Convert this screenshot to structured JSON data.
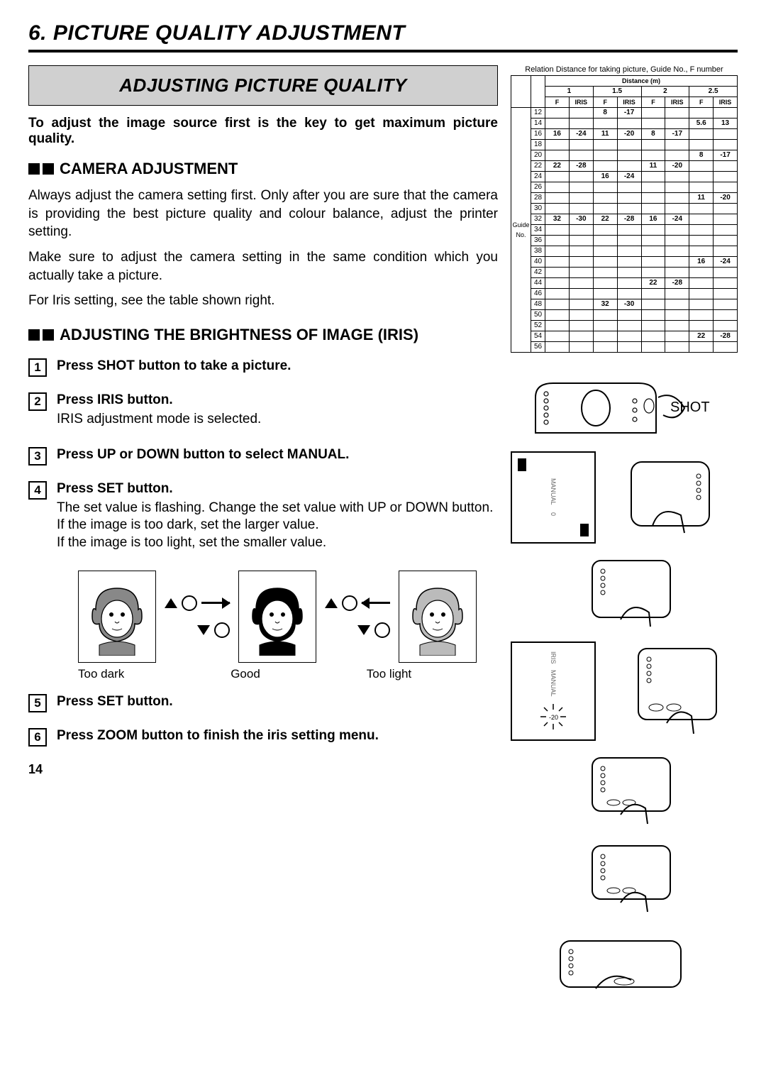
{
  "section_title": "6. PICTURE QUALITY ADJUSTMENT",
  "box_heading": "ADJUSTING PICTURE QUALITY",
  "intro": "To adjust the image source first is the key to get maximum picture quality.",
  "camera_adj": {
    "heading": "CAMERA ADJUSTMENT",
    "p1": "Always adjust the camera setting first.  Only after you are sure that the camera is providing the best picture quality and colour balance, adjust the printer setting.",
    "p2": "Make sure to adjust the camera setting in the same condition which you actually take a picture.",
    "p3": "For Iris setting, see the table shown right."
  },
  "brightness": {
    "heading": "ADJUSTING THE BRIGHTNESS OF IMAGE (IRIS)",
    "steps": [
      {
        "n": "1",
        "title": "Press SHOT button to take a picture.",
        "body": ""
      },
      {
        "n": "2",
        "title": "Press IRIS button.",
        "body": "IRIS adjustment mode is selected."
      },
      {
        "n": "3",
        "title": "Press UP or DOWN button to select MANUAL.",
        "body": ""
      },
      {
        "n": "4",
        "title": "Press SET button.",
        "body": "The set value is flashing. Change the set value with UP or DOWN button.\nIf the image is too dark, set the larger value.\nIf the image is too light, set the smaller value."
      },
      {
        "n": "5",
        "title": "Press SET button.",
        "body": ""
      },
      {
        "n": "6",
        "title": "Press ZOOM button to finish the iris setting menu.",
        "body": ""
      }
    ]
  },
  "face_labels": {
    "a": "Too dark",
    "b": "Good",
    "c": "Too light"
  },
  "page_num": "14",
  "table": {
    "caption": "Relation Distance for taking picture, Guide No., F number",
    "top1": "Distance (m)",
    "distances": [
      "1",
      "1.5",
      "2",
      "2.5"
    ],
    "subcols": [
      "F",
      "IRIS"
    ],
    "row_label": "Guide No.",
    "rows": [
      {
        "g": "12",
        "c": [
          "",
          "",
          "8",
          "-17",
          "",
          "",
          "",
          ""
        ]
      },
      {
        "g": "14",
        "c": [
          "",
          "",
          "",
          "",
          "",
          "",
          "5.6",
          "13"
        ]
      },
      {
        "g": "16",
        "c": [
          "16",
          "-24",
          "11",
          "-20",
          "8",
          "-17",
          "",
          ""
        ]
      },
      {
        "g": "18",
        "c": [
          "",
          "",
          "",
          "",
          "",
          "",
          "",
          ""
        ]
      },
      {
        "g": "20",
        "c": [
          "",
          "",
          "",
          "",
          "",
          "",
          "8",
          "-17"
        ]
      },
      {
        "g": "22",
        "c": [
          "22",
          "-28",
          "",
          "",
          "11",
          "-20",
          "",
          ""
        ]
      },
      {
        "g": "24",
        "c": [
          "",
          "",
          "16",
          "-24",
          "",
          "",
          "",
          ""
        ]
      },
      {
        "g": "26",
        "c": [
          "",
          "",
          "",
          "",
          "",
          "",
          "",
          ""
        ]
      },
      {
        "g": "28",
        "c": [
          "",
          "",
          "",
          "",
          "",
          "",
          "11",
          "-20"
        ]
      },
      {
        "g": "30",
        "c": [
          "",
          "",
          "",
          "",
          "",
          "",
          "",
          ""
        ]
      },
      {
        "g": "32",
        "c": [
          "32",
          "-30",
          "22",
          "-28",
          "16",
          "-24",
          "",
          ""
        ]
      },
      {
        "g": "34",
        "c": [
          "",
          "",
          "",
          "",
          "",
          "",
          "",
          ""
        ]
      },
      {
        "g": "36",
        "c": [
          "",
          "",
          "",
          "",
          "",
          "",
          "",
          ""
        ]
      },
      {
        "g": "38",
        "c": [
          "",
          "",
          "",
          "",
          "",
          "",
          "",
          ""
        ]
      },
      {
        "g": "40",
        "c": [
          "",
          "",
          "",
          "",
          "",
          "",
          "16",
          "-24"
        ]
      },
      {
        "g": "42",
        "c": [
          "",
          "",
          "",
          "",
          "",
          "",
          "",
          ""
        ]
      },
      {
        "g": "44",
        "c": [
          "",
          "",
          "",
          "",
          "22",
          "-28",
          "",
          ""
        ]
      },
      {
        "g": "46",
        "c": [
          "",
          "",
          "",
          "",
          "",
          "",
          "",
          ""
        ]
      },
      {
        "g": "48",
        "c": [
          "",
          "",
          "32",
          "-30",
          "",
          "",
          "",
          ""
        ]
      },
      {
        "g": "50",
        "c": [
          "",
          "",
          "",
          "",
          "",
          "",
          "",
          ""
        ]
      },
      {
        "g": "52",
        "c": [
          "",
          "",
          "",
          "",
          "",
          "",
          "",
          ""
        ]
      },
      {
        "g": "54",
        "c": [
          "",
          "",
          "",
          "",
          "",
          "",
          "22",
          "-28"
        ]
      },
      {
        "g": "56",
        "c": [
          "",
          "",
          "",
          "",
          "",
          "",
          "",
          ""
        ]
      }
    ]
  },
  "diagrams": {
    "shot_label": "SHOT",
    "manual_label": "MANUAL",
    "manual_val": "0",
    "iris_label": "IRIS",
    "iris_val": "-20"
  }
}
